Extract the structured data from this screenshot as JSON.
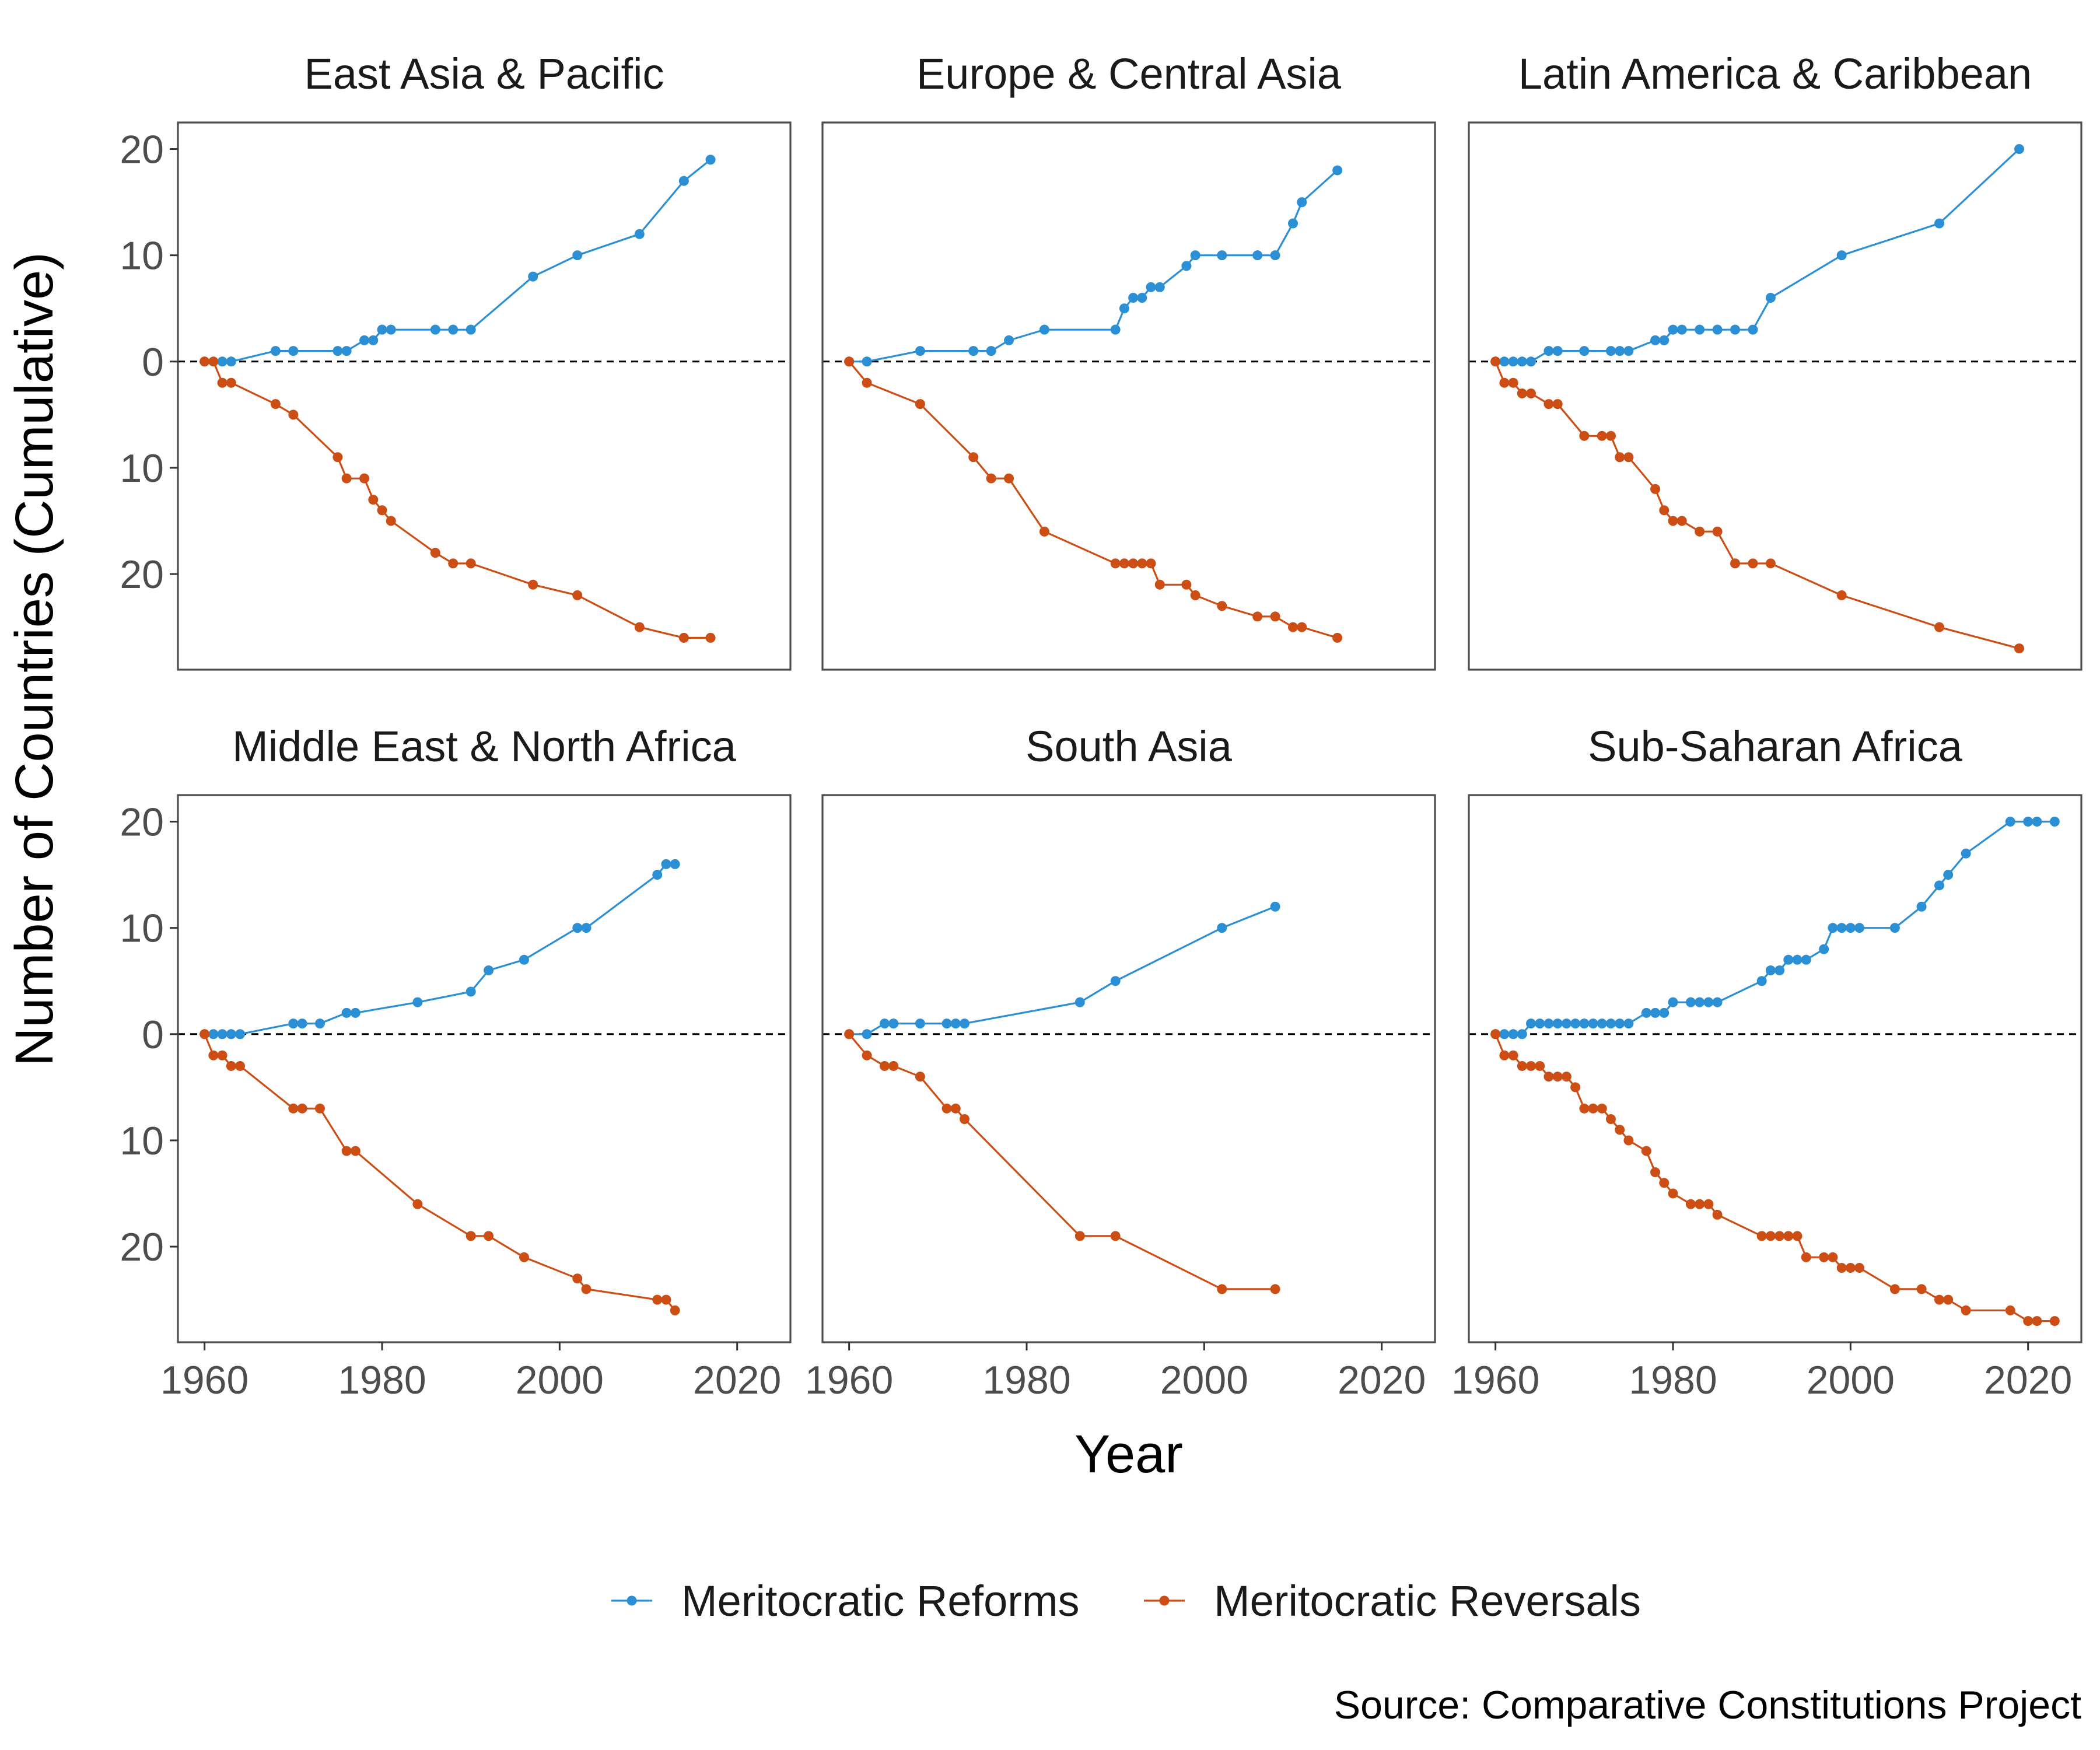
{
  "chart_data": {
    "type": "line",
    "xlabel": "Year",
    "ylabel": "Number of Countries (Cumulative)",
    "caption": "Source: Comparative Constitutions Project",
    "xlim": [
      1957,
      2026
    ],
    "ylim": [
      -29,
      22.5
    ],
    "x_ticks": [
      1960,
      1980,
      2000,
      2020
    ],
    "y_ticks": [
      {
        "value": 20,
        "label": "20"
      },
      {
        "value": 10,
        "label": "10"
      },
      {
        "value": 0,
        "label": "0"
      },
      {
        "value": -10,
        "label": "10"
      },
      {
        "value": -20,
        "label": "20"
      }
    ],
    "reference_line": {
      "y": 0,
      "style": "dashed"
    },
    "legend": {
      "position": "bottom",
      "items": [
        {
          "name": "Meritocratic Reforms",
          "color": "#2b8fd6"
        },
        {
          "name": "Meritocratic Reversals",
          "color": "#cc4e14"
        }
      ]
    },
    "panels": [
      {
        "title": "East Asia & Pacific",
        "series": [
          {
            "name": "Meritocratic Reforms",
            "color": "#2b8fd6",
            "x": [
              1960,
              1962,
              1963,
              1968,
              1970,
              1975,
              1976,
              1978,
              1979,
              1980,
              1981,
              1986,
              1988,
              1990,
              1997,
              2002,
              2009,
              2014,
              2017
            ],
            "y": [
              0,
              0,
              0,
              1,
              1,
              1,
              1,
              2,
              2,
              3,
              3,
              3,
              3,
              3,
              8,
              10,
              12,
              17,
              19
            ]
          },
          {
            "name": "Meritocratic Reversals",
            "color": "#cc4e14",
            "x": [
              1960,
              1961,
              1962,
              1963,
              1968,
              1970,
              1975,
              1976,
              1978,
              1979,
              1980,
              1981,
              1986,
              1988,
              1990,
              1997,
              2002,
              2009,
              2014,
              2017
            ],
            "y": [
              0,
              0,
              -2,
              -2,
              -4,
              -5,
              -9,
              -11,
              -11,
              -13,
              -14,
              -15,
              -18,
              -19,
              -19,
              -21,
              -22,
              -25,
              -26,
              -26
            ]
          }
        ]
      },
      {
        "title": "Europe & Central Asia",
        "series": [
          {
            "name": "Meritocratic Reforms",
            "color": "#2b8fd6",
            "x": [
              1960,
              1962,
              1968,
              1974,
              1976,
              1978,
              1982,
              1990,
              1991,
              1992,
              1993,
              1994,
              1995,
              1998,
              1999,
              2002,
              2006,
              2008,
              2010,
              2011,
              2015
            ],
            "y": [
              0,
              0,
              1,
              1,
              1,
              2,
              3,
              3,
              5,
              6,
              6,
              7,
              7,
              9,
              10,
              10,
              10,
              10,
              13,
              15,
              18
            ]
          },
          {
            "name": "Meritocratic Reversals",
            "color": "#cc4e14",
            "x": [
              1960,
              1962,
              1968,
              1974,
              1976,
              1978,
              1982,
              1990,
              1991,
              1992,
              1993,
              1994,
              1995,
              1998,
              1999,
              2002,
              2006,
              2008,
              2010,
              2011,
              2015
            ],
            "y": [
              0,
              -2,
              -4,
              -9,
              -11,
              -11,
              -16,
              -19,
              -19,
              -19,
              -19,
              -19,
              -21,
              -21,
              -22,
              -23,
              -24,
              -24,
              -25,
              -25,
              -26
            ]
          }
        ]
      },
      {
        "title": "Latin America & Caribbean",
        "series": [
          {
            "name": "Meritocratic Reforms",
            "color": "#2b8fd6",
            "x": [
              1960,
              1961,
              1962,
              1963,
              1964,
              1966,
              1967,
              1970,
              1973,
              1974,
              1975,
              1978,
              1979,
              1980,
              1981,
              1983,
              1985,
              1987,
              1989,
              1991,
              1999,
              2010,
              2019
            ],
            "y": [
              0,
              0,
              0,
              0,
              0,
              1,
              1,
              1,
              1,
              1,
              1,
              2,
              2,
              3,
              3,
              3,
              3,
              3,
              3,
              6,
              10,
              13,
              20
            ]
          },
          {
            "name": "Meritocratic Reversals",
            "color": "#cc4e14",
            "x": [
              1960,
              1961,
              1962,
              1963,
              1964,
              1966,
              1967,
              1970,
              1972,
              1973,
              1974,
              1975,
              1978,
              1979,
              1980,
              1981,
              1983,
              1985,
              1987,
              1989,
              1991,
              1999,
              2010,
              2019
            ],
            "y": [
              0,
              -2,
              -2,
              -3,
              -3,
              -4,
              -4,
              -7,
              -7,
              -7,
              -9,
              -9,
              -12,
              -14,
              -15,
              -15,
              -16,
              -16,
              -19,
              -19,
              -19,
              -22,
              -25,
              -27
            ]
          }
        ]
      },
      {
        "title": "Middle East & North Africa",
        "series": [
          {
            "name": "Meritocratic Reforms",
            "color": "#2b8fd6",
            "x": [
              1960,
              1961,
              1962,
              1963,
              1964,
              1970,
              1971,
              1973,
              1976,
              1977,
              1984,
              1990,
              1992,
              1996,
              2002,
              2003,
              2011,
              2012,
              2013
            ],
            "y": [
              0,
              0,
              0,
              0,
              0,
              1,
              1,
              1,
              2,
              2,
              3,
              4,
              6,
              7,
              10,
              10,
              15,
              16,
              16
            ]
          },
          {
            "name": "Meritocratic Reversals",
            "color": "#cc4e14",
            "x": [
              1960,
              1961,
              1962,
              1963,
              1964,
              1970,
              1971,
              1973,
              1976,
              1977,
              1984,
              1990,
              1992,
              1996,
              2002,
              2003,
              2011,
              2012,
              2013
            ],
            "y": [
              0,
              -2,
              -2,
              -3,
              -3,
              -7,
              -7,
              -7,
              -11,
              -11,
              -16,
              -19,
              -19,
              -21,
              -23,
              -24,
              -25,
              -25,
              -26
            ]
          }
        ]
      },
      {
        "title": "South Asia",
        "series": [
          {
            "name": "Meritocratic Reforms",
            "color": "#2b8fd6",
            "x": [
              1960,
              1962,
              1964,
              1965,
              1968,
              1971,
              1972,
              1973,
              1986,
              1990,
              2002,
              2008
            ],
            "y": [
              0,
              0,
              1,
              1,
              1,
              1,
              1,
              1,
              3,
              5,
              10,
              12
            ]
          },
          {
            "name": "Meritocratic Reversals",
            "color": "#cc4e14",
            "x": [
              1960,
              1962,
              1964,
              1965,
              1968,
              1971,
              1972,
              1973,
              1986,
              1990,
              2002,
              2008
            ],
            "y": [
              0,
              -2,
              -3,
              -3,
              -4,
              -7,
              -7,
              -8,
              -19,
              -19,
              -24,
              -24
            ]
          }
        ]
      },
      {
        "title": "Sub-Saharan Africa",
        "series": [
          {
            "name": "Meritocratic Reforms",
            "color": "#2b8fd6",
            "x": [
              1960,
              1961,
              1962,
              1963,
              1964,
              1965,
              1966,
              1967,
              1968,
              1969,
              1970,
              1971,
              1972,
              1973,
              1974,
              1975,
              1977,
              1978,
              1979,
              1980,
              1982,
              1983,
              1984,
              1985,
              1990,
              1991,
              1992,
              1993,
              1994,
              1995,
              1997,
              1998,
              1999,
              2000,
              2001,
              2005,
              2008,
              2010,
              2011,
              2013,
              2018,
              2020,
              2021,
              2023
            ],
            "y": [
              0,
              0,
              0,
              0,
              1,
              1,
              1,
              1,
              1,
              1,
              1,
              1,
              1,
              1,
              1,
              1,
              2,
              2,
              2,
              3,
              3,
              3,
              3,
              3,
              5,
              6,
              6,
              7,
              7,
              7,
              8,
              10,
              10,
              10,
              10,
              10,
              12,
              14,
              15,
              17,
              20,
              20,
              20,
              20
            ]
          },
          {
            "name": "Meritocratic Reversals",
            "color": "#cc4e14",
            "x": [
              1960,
              1961,
              1962,
              1963,
              1964,
              1965,
              1966,
              1967,
              1968,
              1969,
              1970,
              1971,
              1972,
              1973,
              1974,
              1975,
              1977,
              1978,
              1979,
              1980,
              1982,
              1983,
              1984,
              1985,
              1990,
              1991,
              1992,
              1993,
              1994,
              1995,
              1997,
              1998,
              1999,
              2000,
              2001,
              2005,
              2008,
              2010,
              2011,
              2013,
              2018,
              2020,
              2021,
              2023
            ],
            "y": [
              0,
              -2,
              -2,
              -3,
              -3,
              -3,
              -4,
              -4,
              -4,
              -5,
              -7,
              -7,
              -7,
              -8,
              -9,
              -10,
              -11,
              -13,
              -14,
              -15,
              -16,
              -16,
              -16,
              -17,
              -19,
              -19,
              -19,
              -19,
              -19,
              -21,
              -21,
              -21,
              -22,
              -22,
              -22,
              -24,
              -24,
              -25,
              -25,
              -26,
              -26,
              -27,
              -27,
              -27
            ]
          }
        ]
      }
    ]
  }
}
